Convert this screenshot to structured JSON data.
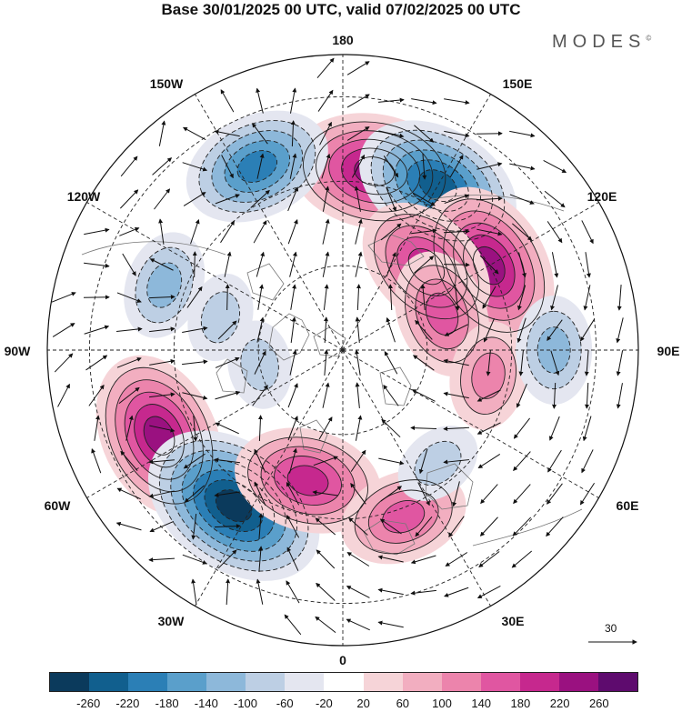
{
  "title": "Base 30/01/2025 00 UTC, valid 07/02/2025 00 UTC",
  "brand": "MODES",
  "brand_mark": "©",
  "lon_labels": {
    "n180": "180",
    "w150": "150W",
    "e150": "150E",
    "w120": "120W",
    "e120": "120E",
    "w90": "90W",
    "e90": "90E",
    "w60": "60W",
    "e60": "60E",
    "w30": "30W",
    "e30": "30E",
    "s0": "0"
  },
  "reference_vector": "30",
  "colorbar": {
    "colors": [
      "#0b3a5c",
      "#115f8e",
      "#2b7fb6",
      "#5a9fcb",
      "#8db8da",
      "#bdcfe4",
      "#e4e6f0",
      "#ffffff",
      "#f6d4d8",
      "#f2aec0",
      "#ec84ac",
      "#e056a1",
      "#c6288e",
      "#9a1180",
      "#5e0b6e"
    ],
    "ticks": [
      "-260",
      "-220",
      "-180",
      "-140",
      "-100",
      "-60",
      "-20",
      "20",
      "60",
      "100",
      "140",
      "180",
      "220",
      "260"
    ]
  },
  "anomaly_centers": [
    {
      "lon": 170,
      "lat": 47,
      "value": 230
    },
    {
      "lon": -155,
      "lat": 42,
      "value": -160
    },
    {
      "lon": 150,
      "lat": 45,
      "value": -200
    },
    {
      "lon": 120,
      "lat": 50,
      "value": 200
    },
    {
      "lon": 135,
      "lat": 62,
      "value": 160
    },
    {
      "lon": 110,
      "lat": 65,
      "value": 150
    },
    {
      "lon": -110,
      "lat": 45,
      "value": -80
    },
    {
      "lon": -105,
      "lat": 60,
      "value": -60
    },
    {
      "lon": -65,
      "lat": 42,
      "value": 220
    },
    {
      "lon": -35,
      "lat": 45,
      "value": -240
    },
    {
      "lon": -15,
      "lat": 58,
      "value": 170
    },
    {
      "lon": 20,
      "lat": 48,
      "value": 150
    },
    {
      "lon": 80,
      "lat": 55,
      "value": 110
    },
    {
      "lon": 90,
      "lat": 40,
      "value": -100
    },
    {
      "lon": 40,
      "lat": 55,
      "value": -50
    },
    {
      "lon": -80,
      "lat": 70,
      "value": -40
    }
  ]
}
